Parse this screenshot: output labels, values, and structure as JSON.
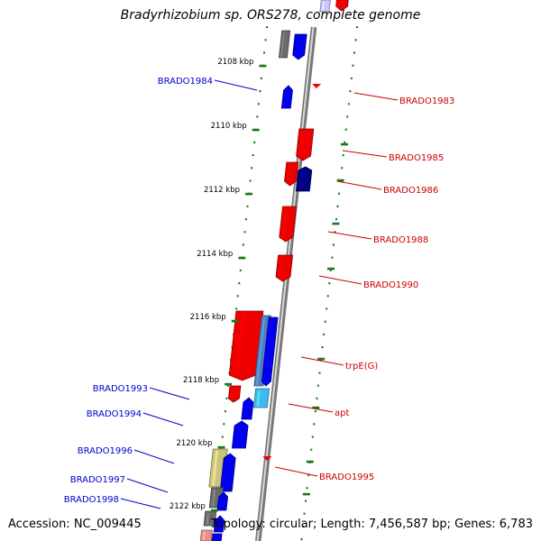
{
  "title": "Bradyrhizobium sp. ORS278, complete genome",
  "footer": {
    "accession": "Accession: NC_009445",
    "topology": "Topology: circular; Length: 7,456,587 bp; Genes: 6,783"
  },
  "colors": {
    "backbone": "#8a8a8a",
    "ticks": "#1a7a1a",
    "label_forward": "#0000cc",
    "label_reverse": "#cc0000"
  },
  "scale": {
    "unit": "kbp",
    "labels": [
      "2108 kbp",
      "2110 kbp",
      "2112 kbp",
      "2114 kbp",
      "2116 kbp",
      "2118 kbp",
      "2120 kbp",
      "2122 kbp"
    ]
  },
  "genes": [
    {
      "label": "BRADO1984",
      "strand": "forward"
    },
    {
      "label": "BRADO1993",
      "strand": "forward"
    },
    {
      "label": "BRADO1994",
      "strand": "forward"
    },
    {
      "label": "BRADO1996",
      "strand": "forward"
    },
    {
      "label": "BRADO1997",
      "strand": "forward"
    },
    {
      "label": "BRADO1998",
      "strand": "forward"
    },
    {
      "label": "BRADO1983",
      "strand": "reverse"
    },
    {
      "label": "BRADO1985",
      "strand": "reverse"
    },
    {
      "label": "BRADO1986",
      "strand": "reverse"
    },
    {
      "label": "BRADO1988",
      "strand": "reverse"
    },
    {
      "label": "BRADO1990",
      "strand": "reverse"
    },
    {
      "label": "trpE(G)",
      "strand": "reverse"
    },
    {
      "label": "apt",
      "strand": "reverse"
    },
    {
      "label": "BRADO1995",
      "strand": "reverse"
    }
  ]
}
